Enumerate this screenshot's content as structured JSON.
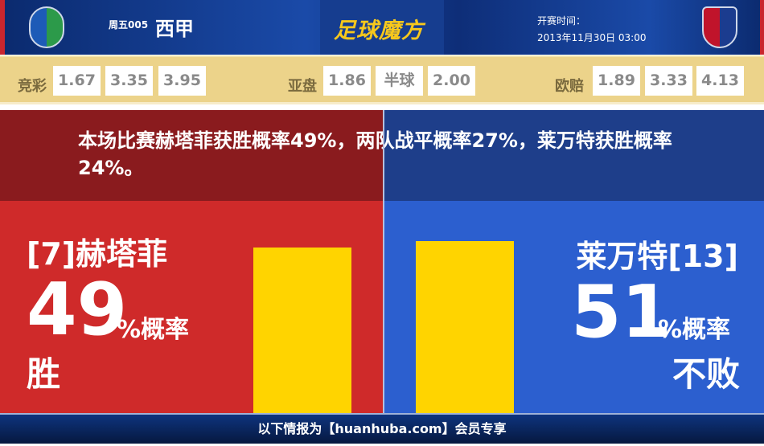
{
  "header": {
    "match_no": "周五005",
    "league": "西甲",
    "brand": "足球魔方",
    "time_label": "开赛时间：",
    "time_value": "2013年11月30日 03:00",
    "home_logo": "getafe-crest-icon",
    "away_logo": "levante-crest-icon"
  },
  "odds": {
    "jingcai": {
      "label": "竞彩",
      "values": [
        "1.67",
        "3.35",
        "3.95"
      ]
    },
    "yapan": {
      "label": "亚盘",
      "values": [
        "1.86",
        "半球",
        "2.00"
      ]
    },
    "oupei": {
      "label": "欧赔",
      "values": [
        "1.89",
        "3.33",
        "4.13"
      ]
    }
  },
  "headline": "本场比赛赫塔菲获胜概率49%，两队战平概率27%，莱万特获胜概率24%。",
  "home": {
    "name": "[7]赫塔菲",
    "percent": "49",
    "unit": "%概率",
    "result": "胜",
    "bar_value": 49,
    "color": "#cf2a2a"
  },
  "away": {
    "name": "莱万特[13]",
    "percent": "51",
    "unit": "%概率",
    "result": "不败",
    "bar_value": 51,
    "color": "#2c5fcf"
  },
  "bar_color": "#ffd400",
  "footer": "以下情报为【huanhuba.com】会员专享"
}
